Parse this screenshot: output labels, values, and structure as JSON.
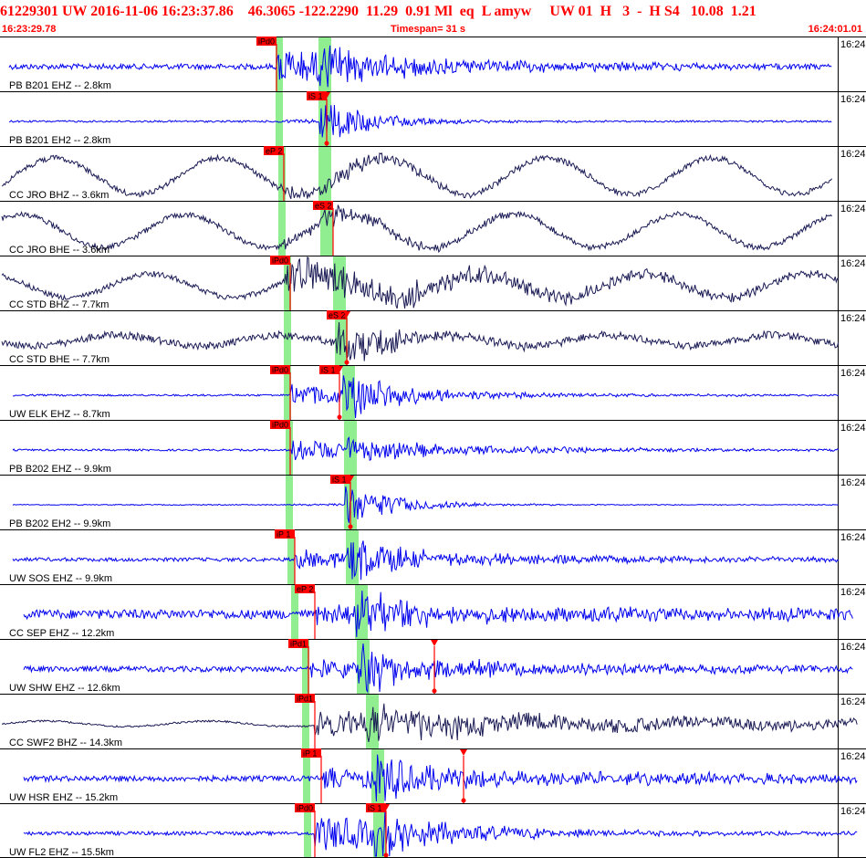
{
  "header": {
    "event_line": "61229301 UW 2016-11-06 16:23:37.86    46.3065 -122.2290  11.29  0.91 Ml  eq  L amyw     UW 01  H   3  -  H S4   10.08  1.21",
    "start_time": "16:23:29.78",
    "timespan_label": "Timespan=  31 s",
    "end_time": "16:24:01.01"
  },
  "time_tick_label": "16:24",
  "colors": {
    "header_red": "#ff0000",
    "blue_trace": "#0000ee",
    "dark_trace": "#1a1a55",
    "band_green": "#90ee90",
    "pick_red": "#ff0000"
  },
  "traces": [
    {
      "label": "PB B201 EHZ -- 2.8km",
      "color": "blue",
      "p": 303,
      "s": 350,
      "pw": 8,
      "sw": 14,
      "picks": [
        {
          "text": "iPd0",
          "x": 303,
          "marker": false
        }
      ],
      "wave": {
        "noise": 3,
        "start": 303,
        "end": 912,
        "amp": 20,
        "decay": 0.22,
        "sAmp": 15,
        "long": 0
      }
    },
    {
      "label": "PB B201 EH2 -- 2.8km",
      "color": "blue",
      "p": 303,
      "s": 350,
      "pw": 8,
      "sw": 14,
      "picks": [
        {
          "text": "iS 1",
          "x": 358,
          "marker": true
        }
      ],
      "wave": {
        "noise": 1,
        "start": 304,
        "end": 912,
        "amp": 2,
        "decay": 0.22,
        "sAmp": 24,
        "long": 0
      }
    },
    {
      "label": "CC JRO BHZ -- 3.6km",
      "color": "dark",
      "p": 306,
      "s": 350,
      "pw": 8,
      "sw": 14,
      "picks": [
        {
          "text": "eP 2",
          "x": 311,
          "marker": false
        }
      ],
      "wave": {
        "noise": 3,
        "start": 306,
        "end": 912,
        "amp": 6,
        "decay": 0.2,
        "sAmp": 9,
        "long": 20
      }
    },
    {
      "label": "CC JRO BHE -- 3.6km",
      "color": "dark",
      "p": 306,
      "s": 352,
      "pw": 8,
      "sw": 14,
      "picks": [
        {
          "text": "eS 2",
          "x": 365,
          "marker": false
        }
      ],
      "wave": {
        "noise": 3,
        "start": 306,
        "end": 912,
        "amp": 4,
        "decay": 0.2,
        "sAmp": 12,
        "long": 18
      }
    },
    {
      "label": "CC STD BHZ -- 7.7km",
      "color": "dark",
      "p": 312,
      "s": 366,
      "pw": 8,
      "sw": 14,
      "picks": [
        {
          "text": "iPd0",
          "x": 318,
          "marker": false
        }
      ],
      "wave": {
        "noise": 3,
        "start": 312,
        "end": 920,
        "amp": 20,
        "decay": 0.15,
        "sAmp": 14,
        "long": 13
      }
    },
    {
      "label": "CC STD BHE -- 7.7km",
      "color": "dark",
      "p": 312,
      "s": 368,
      "pw": 8,
      "sw": 14,
      "picks": [
        {
          "text": "eS 2",
          "x": 380,
          "marker": true
        }
      ],
      "wave": {
        "noise": 4,
        "start": 312,
        "end": 920,
        "amp": 4,
        "decay": 0.14,
        "sAmp": 26,
        "long": 6
      }
    },
    {
      "label": "UW ELK EHZ -- 8.7km",
      "color": "blue",
      "p": 312,
      "s": 376,
      "pw": 8,
      "sw": 14,
      "picks": [
        {
          "text": "iPd0",
          "x": 318,
          "marker": false
        },
        {
          "text": "iS 1",
          "x": 372,
          "marker": true
        }
      ],
      "wave": {
        "noise": 1,
        "start": 318,
        "end": 920,
        "amp": 12,
        "decay": 0.25,
        "sAmp": 26,
        "long": 0
      }
    },
    {
      "label": "PB B202 EHZ -- 9.9km",
      "color": "blue",
      "p": 314,
      "s": 378,
      "pw": 8,
      "sw": 14,
      "picks": [
        {
          "text": "iPd0",
          "x": 318,
          "marker": false
        }
      ],
      "wave": {
        "noise": 1,
        "start": 318,
        "end": 920,
        "amp": 12,
        "decay": 0.2,
        "sAmp": 12,
        "long": 0
      }
    },
    {
      "label": "PB B202 EH2 -- 9.9km",
      "color": "blue",
      "p": 314,
      "s": 378,
      "pw": 8,
      "sw": 14,
      "picks": [
        {
          "text": "iS 1",
          "x": 384,
          "marker": true
        }
      ],
      "wave": {
        "noise": 0.5,
        "start": 318,
        "end": 920,
        "amp": 1,
        "decay": 0.2,
        "sAmp": 22,
        "long": 0
      }
    },
    {
      "label": "UW SOS EHZ -- 9.9km",
      "color": "blue",
      "p": 316,
      "s": 380,
      "pw": 8,
      "sw": 14,
      "picks": [
        {
          "text": "iP 1",
          "x": 323,
          "marker": false
        }
      ],
      "wave": {
        "noise": 2,
        "start": 323,
        "end": 920,
        "amp": 10,
        "decay": 0.14,
        "sAmp": 26,
        "long": 0
      }
    },
    {
      "label": "CC SEP EHZ -- 12.2km",
      "color": "blue",
      "p": 320,
      "s": 390,
      "pw": 8,
      "sw": 14,
      "picks": [
        {
          "text": "eP 2",
          "x": 345,
          "marker": false
        }
      ],
      "wave": {
        "noise": 5,
        "start": 345,
        "end": 935,
        "amp": 8,
        "decay": 0.08,
        "sAmp": 25,
        "long": 0
      }
    },
    {
      "label": "UW SHW EHZ -- 12.6km",
      "color": "blue",
      "p": 332,
      "s": 392,
      "pw": 8,
      "sw": 14,
      "picks": [
        {
          "text": "iPd1",
          "x": 338,
          "marker": false
        },
        {
          "text": "",
          "x": 476,
          "marker": true
        }
      ],
      "wave": {
        "noise": 3,
        "start": 338,
        "end": 935,
        "amp": 10,
        "decay": 0.1,
        "sAmp": 28,
        "long": 0
      }
    },
    {
      "label": "CC SWF2 BHZ -- 14.3km",
      "color": "dark",
      "p": 332,
      "s": 402,
      "pw": 8,
      "sw": 14,
      "picks": [
        {
          "text": "iPd1",
          "x": 345,
          "marker": false
        }
      ],
      "wave": {
        "noise": 1,
        "start": 345,
        "end": 940,
        "amp": 15,
        "decay": 0.08,
        "sAmp": 18,
        "long": 3
      }
    },
    {
      "label": "UW HSR EHZ -- 15.2km",
      "color": "blue",
      "p": 333,
      "s": 408,
      "pw": 8,
      "sw": 14,
      "picks": [
        {
          "text": "iP 1",
          "x": 352,
          "marker": false
        },
        {
          "text": "",
          "x": 508,
          "marker": true
        }
      ],
      "wave": {
        "noise": 3,
        "start": 352,
        "end": 940,
        "amp": 10,
        "decay": 0.08,
        "sAmp": 28,
        "long": 0
      }
    },
    {
      "label": "UW FL2 EHZ -- 15.5km",
      "color": "blue",
      "p": 334,
      "s": 410,
      "pw": 8,
      "sw": 14,
      "picks": [
        {
          "text": "iPd0",
          "x": 345,
          "marker": false
        },
        {
          "text": "iS 1",
          "x": 423,
          "marker": true
        }
      ],
      "wave": {
        "noise": 2,
        "start": 345,
        "end": 940,
        "amp": 20,
        "decay": 0.25,
        "sAmp": 26,
        "long": 0
      }
    }
  ]
}
